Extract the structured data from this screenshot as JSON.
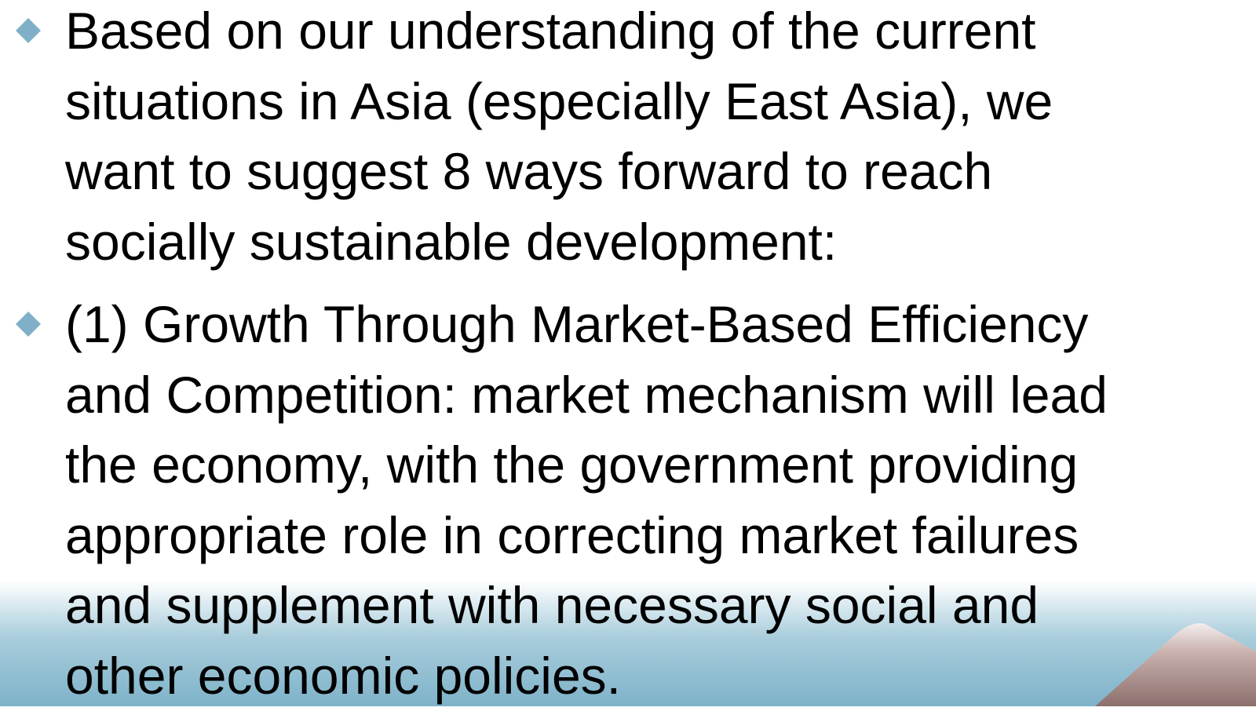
{
  "bullets": [
    {
      "lines": [
        "Based on our understanding of the current",
        "situations in Asia (especially East Asia), we",
        "want to suggest 8 ways forward to reach",
        "socially sustainable development:"
      ]
    },
    {
      "lines": [
        "(1) Growth Through Market-Based Efficiency",
        "and Competition: market mechanism will lead",
        "the economy, with the government providing",
        "appropriate role in correcting market failures",
        "and supplement with necessary social and",
        "other economic policies."
      ]
    }
  ]
}
